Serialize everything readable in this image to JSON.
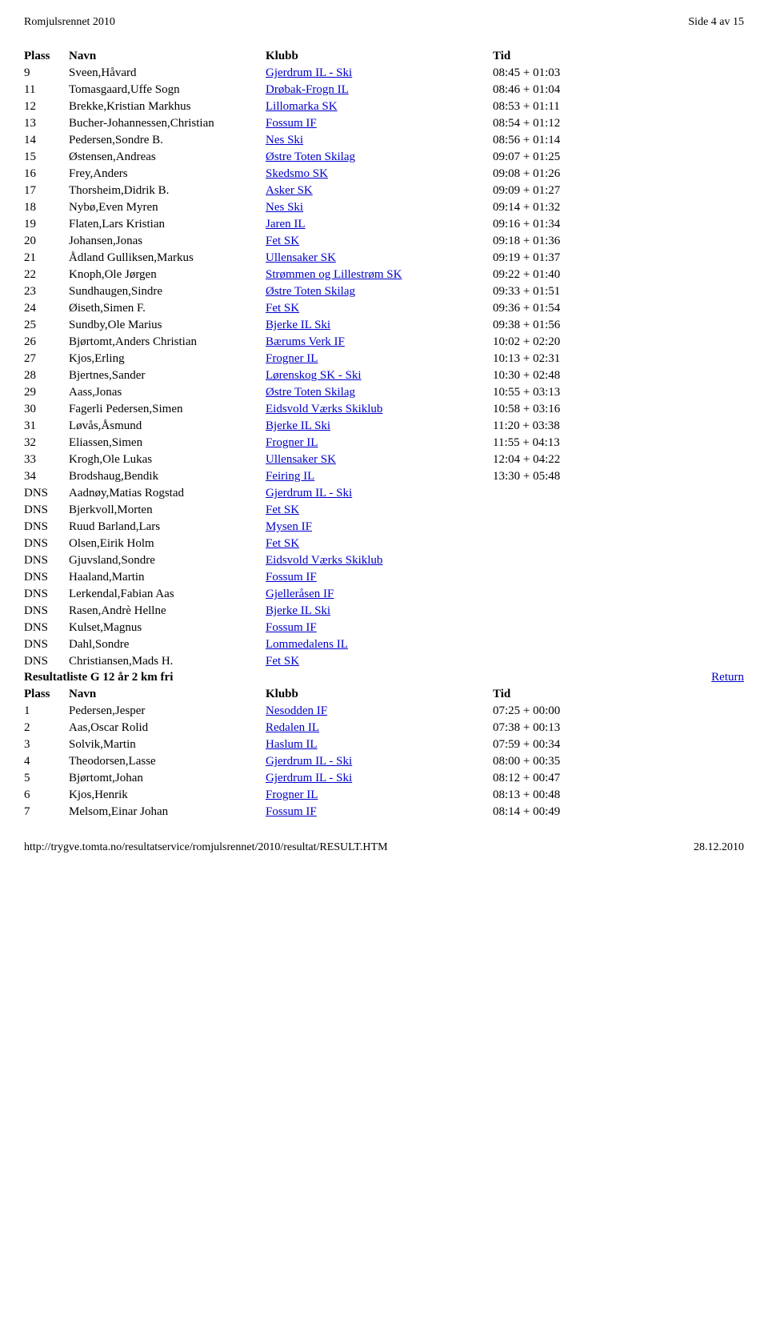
{
  "page_header_left": "Romjulsrennet 2010",
  "page_header_right": "Side 4 av 15",
  "footer_left": "http://trygve.tomta.no/resultatservice/romjulsrennet/2010/resultat/RESULT.HTM",
  "footer_right": "28.12.2010",
  "headers": {
    "plass": "Plass",
    "navn": "Navn",
    "klubb": "Klubb",
    "tid": "Tid"
  },
  "section1_rows": [
    {
      "plass": "9",
      "navn": "Sveen,Håvard",
      "klubb": "Gjerdrum IL - Ski",
      "tid": "08:45 + 01:03"
    },
    {
      "plass": "11",
      "navn": "Tomasgaard,Uffe Sogn",
      "klubb": "Drøbak-Frogn IL",
      "tid": "08:46 + 01:04"
    },
    {
      "plass": "12",
      "navn": "Brekke,Kristian Markhus",
      "klubb": "Lillomarka SK",
      "tid": "08:53 + 01:11"
    },
    {
      "plass": "13",
      "navn": "Bucher-Johannessen,Christian",
      "klubb": "Fossum IF",
      "tid": "08:54 + 01:12"
    },
    {
      "plass": "14",
      "navn": "Pedersen,Sondre B.",
      "klubb": "Nes Ski",
      "tid": "08:56 + 01:14"
    },
    {
      "plass": "15",
      "navn": "Østensen,Andreas",
      "klubb": "Østre Toten Skilag",
      "tid": "09:07 + 01:25"
    },
    {
      "plass": "16",
      "navn": "Frey,Anders",
      "klubb": "Skedsmo SK",
      "tid": "09:08 + 01:26"
    },
    {
      "plass": "17",
      "navn": "Thorsheim,Didrik B.",
      "klubb": "Asker SK",
      "tid": "09:09 + 01:27"
    },
    {
      "plass": "18",
      "navn": "Nybø,Even Myren",
      "klubb": "Nes Ski",
      "tid": "09:14 + 01:32"
    },
    {
      "plass": "19",
      "navn": "Flaten,Lars Kristian",
      "klubb": "Jaren IL",
      "tid": "09:16 + 01:34"
    },
    {
      "plass": "20",
      "navn": "Johansen,Jonas",
      "klubb": "Fet SK",
      "tid": "09:18 + 01:36"
    },
    {
      "plass": "21",
      "navn": "Ådland Gulliksen,Markus",
      "klubb": "Ullensaker SK",
      "tid": "09:19 + 01:37"
    },
    {
      "plass": "22",
      "navn": "Knoph,Ole Jørgen",
      "klubb": "Strømmen og Lillestrøm SK",
      "tid": "09:22 + 01:40"
    },
    {
      "plass": "23",
      "navn": "Sundhaugen,Sindre",
      "klubb": "Østre Toten Skilag",
      "tid": "09:33 + 01:51"
    },
    {
      "plass": "24",
      "navn": "Øiseth,Simen F.",
      "klubb": "Fet SK",
      "tid": "09:36 + 01:54"
    },
    {
      "plass": "25",
      "navn": "Sundby,Ole Marius",
      "klubb": "Bjerke IL Ski",
      "tid": "09:38 + 01:56"
    },
    {
      "plass": "26",
      "navn": "Bjørtomt,Anders Christian",
      "klubb": "Bærums Verk IF",
      "tid": "10:02 + 02:20"
    },
    {
      "plass": "27",
      "navn": "Kjos,Erling",
      "klubb": "Frogner IL",
      "tid": "10:13 + 02:31"
    },
    {
      "plass": "28",
      "navn": "Bjertnes,Sander",
      "klubb": "Lørenskog SK - Ski",
      "tid": "10:30 + 02:48"
    },
    {
      "plass": "29",
      "navn": "Aass,Jonas",
      "klubb": "Østre Toten Skilag",
      "tid": "10:55 + 03:13"
    },
    {
      "plass": "30",
      "navn": "Fagerli Pedersen,Simen",
      "klubb": "Eidsvold Værks Skiklub",
      "tid": "10:58 + 03:16"
    },
    {
      "plass": "31",
      "navn": "Løvås,Åsmund",
      "klubb": "Bjerke IL Ski",
      "tid": "11:20 + 03:38"
    },
    {
      "plass": "32",
      "navn": "Eliassen,Simen",
      "klubb": "Frogner IL",
      "tid": "11:55 + 04:13"
    },
    {
      "plass": "33",
      "navn": "Krogh,Ole Lukas",
      "klubb": "Ullensaker SK",
      "tid": "12:04 + 04:22"
    },
    {
      "plass": "34",
      "navn": "Brodshaug,Bendik",
      "klubb": "Feiring IL",
      "tid": "13:30 + 05:48"
    },
    {
      "plass": "DNS",
      "navn": "Aadnøy,Matias Rogstad",
      "klubb": "Gjerdrum IL - Ski",
      "tid": ""
    },
    {
      "plass": "DNS",
      "navn": "Bjerkvoll,Morten",
      "klubb": "Fet SK",
      "tid": ""
    },
    {
      "plass": "DNS",
      "navn": "Ruud Barland,Lars",
      "klubb": "Mysen IF",
      "tid": ""
    },
    {
      "plass": "DNS",
      "navn": "Olsen,Eirik Holm",
      "klubb": "Fet SK",
      "tid": ""
    },
    {
      "plass": "DNS",
      "navn": "Gjuvsland,Sondre",
      "klubb": "Eidsvold Værks Skiklub",
      "tid": ""
    },
    {
      "plass": "DNS",
      "navn": "Haaland,Martin",
      "klubb": "Fossum IF",
      "tid": ""
    },
    {
      "plass": "DNS",
      "navn": "Lerkendal,Fabian Aas",
      "klubb": "Gjelleråsen IF",
      "tid": ""
    },
    {
      "plass": "DNS",
      "navn": "Rasen,Andrè Hellne",
      "klubb": "Bjerke IL Ski",
      "tid": ""
    },
    {
      "plass": "DNS",
      "navn": "Kulset,Magnus",
      "klubb": "Fossum IF",
      "tid": ""
    },
    {
      "plass": "DNS",
      "navn": "Dahl,Sondre",
      "klubb": "Lommedalens IL",
      "tid": ""
    },
    {
      "plass": "DNS",
      "navn": "Christiansen,Mads H.",
      "klubb": "Fet SK",
      "tid": ""
    }
  ],
  "section2_title": "Resultatliste G 12 år 2 km fri",
  "section2_return": "Return",
  "section2_rows": [
    {
      "plass": "1",
      "navn": "Pedersen,Jesper",
      "klubb": "Nesodden IF",
      "tid": "07:25 + 00:00"
    },
    {
      "plass": "2",
      "navn": "Aas,Oscar Rolid",
      "klubb": "Redalen IL",
      "tid": "07:38 + 00:13"
    },
    {
      "plass": "3",
      "navn": "Solvik,Martin",
      "klubb": "Haslum IL",
      "tid": "07:59 + 00:34"
    },
    {
      "plass": "4",
      "navn": "Theodorsen,Lasse",
      "klubb": "Gjerdrum IL - Ski",
      "tid": "08:00 + 00:35"
    },
    {
      "plass": "5",
      "navn": "Bjørtomt,Johan",
      "klubb": "Gjerdrum IL - Ski",
      "tid": "08:12 + 00:47"
    },
    {
      "plass": "6",
      "navn": "Kjos,Henrik",
      "klubb": "Frogner IL",
      "tid": "08:13 + 00:48"
    },
    {
      "plass": "7",
      "navn": "Melsom,Einar Johan",
      "klubb": "Fossum IF",
      "tid": "08:14 + 00:49"
    }
  ]
}
